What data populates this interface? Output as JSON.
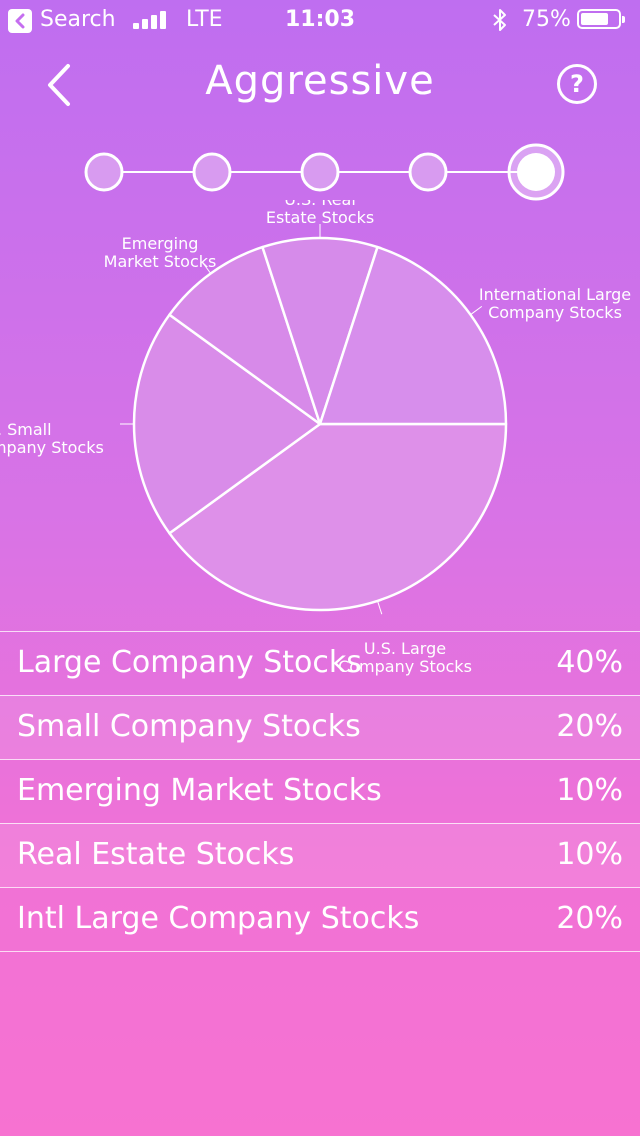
{
  "status_bar": {
    "back_label": "Search",
    "carrier": "LTE",
    "time": "11:03",
    "battery_percent": "75%",
    "battery_level": 0.75
  },
  "nav": {
    "title": "Aggressive",
    "back_icon": "chevron-left-icon",
    "help_icon": "question-circle-icon",
    "help_symbol": "?"
  },
  "stepper": {
    "step_count": 5,
    "selected_index": 4
  },
  "chart_data": {
    "type": "pie",
    "slices": [
      {
        "label": "U.S. Large Company Stocks",
        "label_lines": [
          "U.S. Large",
          "Company Stocks"
        ],
        "value": 40
      },
      {
        "label": "U.S. Small Company Stocks",
        "label_lines": [
          "U.S. Small",
          "Company Stocks"
        ],
        "value": 20
      },
      {
        "label": "Emerging Market Stocks",
        "label_lines": [
          "Emerging",
          "Market Stocks"
        ],
        "value": 10
      },
      {
        "label": "U.S. Real Estate Stocks",
        "label_lines": [
          "U.S. Real",
          "Estate Stocks"
        ],
        "value": 10
      },
      {
        "label": "International Large Company Stocks",
        "label_lines": [
          "International Large",
          "Company Stocks"
        ],
        "value": 20
      }
    ]
  },
  "allocations": [
    {
      "name": "Large Company Stocks",
      "percent": "40%"
    },
    {
      "name": "Small Company Stocks",
      "percent": "20%"
    },
    {
      "name": "Emerging Market Stocks",
      "percent": "10%"
    },
    {
      "name": "Real Estate Stocks",
      "percent": "10%"
    },
    {
      "name": "Intl Large Company Stocks",
      "percent": "20%"
    }
  ]
}
